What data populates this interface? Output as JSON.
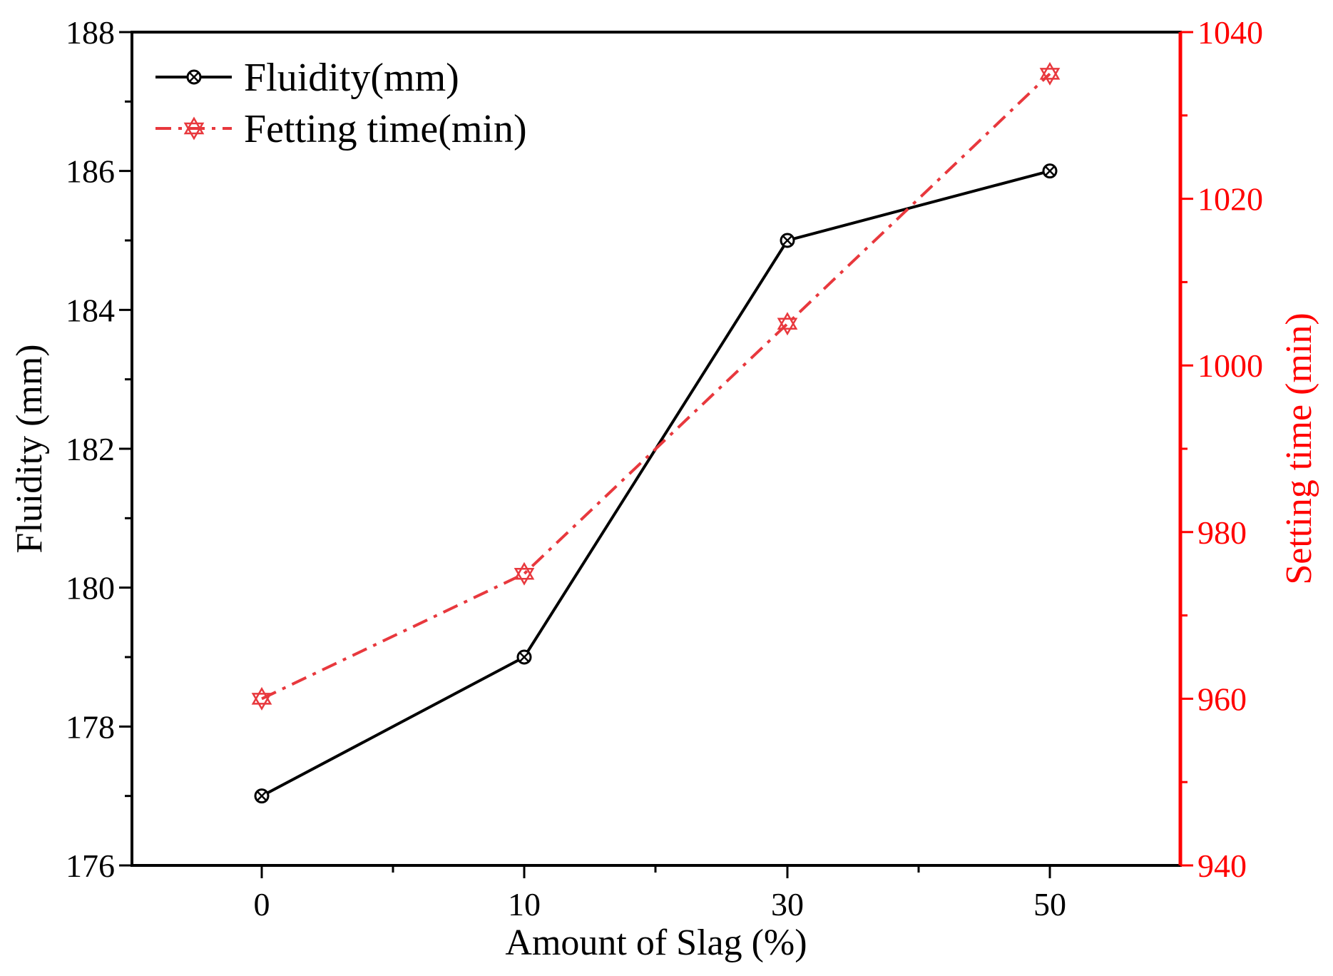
{
  "chart_data": {
    "type": "line",
    "categories": [
      "0",
      "10",
      "30",
      "50"
    ],
    "xlabel": "Amount of Slag (%)",
    "ylabel": "Fluidity (mm)",
    "y2label": "Setting time (min)",
    "ylim": [
      176,
      188
    ],
    "y2lim": [
      940,
      1040
    ],
    "y_ticks": [
      "176",
      "178",
      "180",
      "182",
      "184",
      "186",
      "188"
    ],
    "y2_ticks": [
      "940",
      "960",
      "980",
      "1000",
      "1020",
      "1040"
    ],
    "legend_position": "top-left",
    "series": [
      {
        "name": "Fluidity(mm)",
        "axis": "left",
        "values": [
          177,
          179,
          185,
          186
        ],
        "color": "#000000",
        "line_style": "solid",
        "marker": "circle-x"
      },
      {
        "name": "Fetting time(min)",
        "axis": "right",
        "values": [
          960,
          975,
          1005,
          1035
        ],
        "color": "#e8383d",
        "line_style": "dash-dot",
        "marker": "star"
      }
    ],
    "right_axis_color": "#ff0000",
    "grid": false
  }
}
